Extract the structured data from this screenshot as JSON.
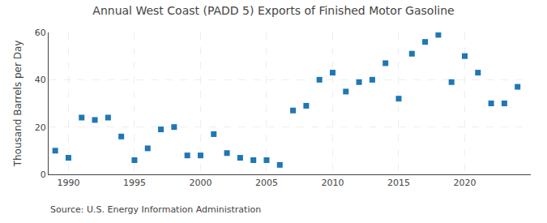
{
  "chart_data": {
    "type": "scatter",
    "title": "Annual West Coast (PADD 5) Exports of Finished Motor Gasoline",
    "ylabel": "Thousand Barrels per Day",
    "annotations": [
      "Source: U.S. Energy Information Administration"
    ],
    "x": [
      1989,
      1990,
      1991,
      1992,
      1993,
      1994,
      1995,
      1996,
      1997,
      1998,
      1999,
      2000,
      2001,
      2002,
      2003,
      2004,
      2005,
      2006,
      2007,
      2008,
      2009,
      2010,
      2011,
      2012,
      2013,
      2014,
      2015,
      2016,
      2017,
      2018,
      2019,
      2020,
      2021,
      2022,
      2023,
      2024
    ],
    "values": [
      10,
      7,
      24,
      23,
      24,
      16,
      6,
      11,
      19,
      20,
      8,
      8,
      17,
      9,
      7,
      6,
      6,
      4,
      27,
      29,
      40,
      43,
      35,
      39,
      40,
      47,
      32,
      51,
      56,
      59,
      39,
      50,
      43,
      30,
      30,
      37
    ],
    "marker": "square",
    "xlim": [
      1988.5,
      2025
    ],
    "xticks": [
      1990,
      1995,
      2000,
      2005,
      2010,
      2015,
      2020
    ],
    "ylim": [
      0,
      60
    ],
    "yticks": [
      0,
      20,
      40,
      60
    ],
    "grid": true
  }
}
